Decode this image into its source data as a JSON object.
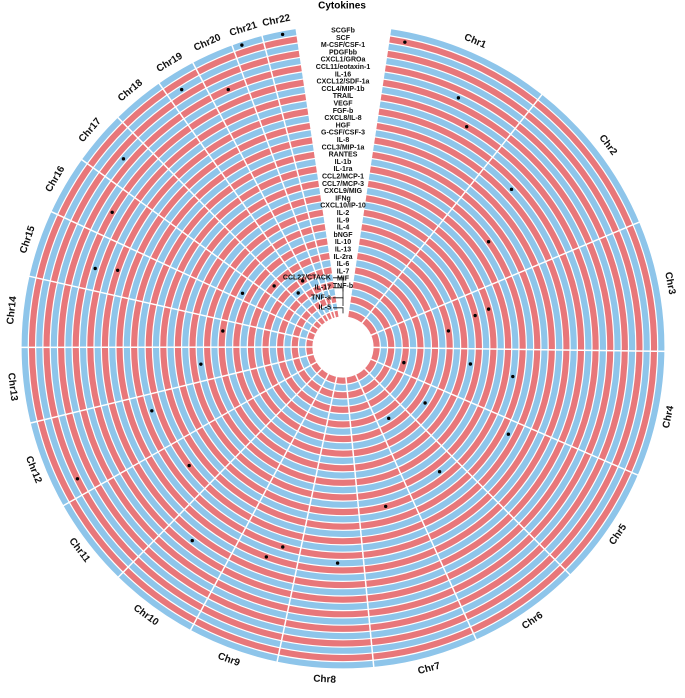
{
  "chart_data": {
    "type": "circos",
    "title": "Cytokines",
    "chromosomes": [
      "Chr1",
      "Chr2",
      "Chr3",
      "Chr4",
      "Chr5",
      "Chr6",
      "Chr7",
      "Chr8",
      "Chr9",
      "Chr10",
      "Chr11",
      "Chr12",
      "Chr13",
      "Chr14",
      "Chr15",
      "Chr16",
      "Chr17",
      "Chr18",
      "Chr19",
      "Chr20",
      "Chr21",
      "Chr22"
    ],
    "chromosome_sizes": [
      249,
      242,
      198,
      190,
      181,
      171,
      159,
      145,
      138,
      134,
      135,
      133,
      114,
      107,
      102,
      90,
      83,
      80,
      59,
      64,
      47,
      51
    ],
    "cytokines": [
      "SCGFb",
      "SCF",
      "M-CSF/CSF-1",
      "PDGFbb",
      "CXCL1/GROa",
      "CCL11/eotaxin-1",
      "IL-16",
      "CXCL12/SDF-1a",
      "CCL4/MIP-1b",
      "TRAIL",
      "VEGF",
      "FGF-b",
      "CXCL8/IL-8",
      "HGF",
      "G-CSF/CSF-3",
      "IL-8",
      "CCL3/MIP-1a",
      "RANTES",
      "IL-1b",
      "IL-1ra",
      "CCL2/MCP-1",
      "CCL7/MCP-3",
      "CXCL9/MIG",
      "IFNg",
      "CXCL10/IP-10",
      "IL-2",
      "IL-9",
      "IL-4",
      "bNGF",
      "IL-10",
      "IL-13",
      "IL-2ra",
      "IL-6",
      "IL-7",
      "MIF",
      "TNF-b",
      "CCL27/CTACK",
      "IL-17",
      "TNF-a",
      "IL-5"
    ],
    "ring_colors": [
      "#8ec5ea",
      "#e8777a"
    ],
    "dot_color": "#000000",
    "points": [
      {
        "chromosome": "Chr1",
        "cytokine": "SCF",
        "position": 0.1
      },
      {
        "chromosome": "Chr1",
        "cytokine": "IL-16",
        "position": 0.55
      },
      {
        "chromosome": "Chr1",
        "cytokine": "TRAIL",
        "position": 0.7
      },
      {
        "chromosome": "Chr2",
        "cytokine": "CXCL8/IL-8",
        "position": 0.3
      },
      {
        "chromosome": "Chr2",
        "cytokine": "IL-1ra",
        "position": 0.55
      },
      {
        "chromosome": "Chr3",
        "cytokine": "IFNg",
        "position": 0.35
      },
      {
        "chromosome": "Chr3",
        "cytokine": "IL-2",
        "position": 0.4
      },
      {
        "chromosome": "Chr3",
        "cytokine": "IL-10",
        "position": 0.6
      },
      {
        "chromosome": "Chr4",
        "cytokine": "CCL2/MCP-1",
        "position": 0.4
      },
      {
        "chromosome": "Chr4",
        "cytokine": "IL-9",
        "position": 0.3
      },
      {
        "chromosome": "Chr4",
        "cytokine": "TNF-b",
        "position": 0.6
      },
      {
        "chromosome": "Chr5",
        "cytokine": "IL-1b",
        "position": 0.2
      },
      {
        "chromosome": "Chr5",
        "cytokine": "IL-13",
        "position": 0.5
      },
      {
        "chromosome": "Chr6",
        "cytokine": "CXCL9/MIG",
        "position": 0.35
      },
      {
        "chromosome": "Chr6",
        "cytokine": "IL-6",
        "position": 0.6
      },
      {
        "chromosome": "Chr7",
        "cytokine": "CCL7/MCP-3",
        "position": 0.5
      },
      {
        "chromosome": "Chr8",
        "cytokine": "G-CSF/CSF-3",
        "position": 0.4
      },
      {
        "chromosome": "Chr9",
        "cytokine": "HGF",
        "position": 0.5
      },
      {
        "chromosome": "Chr9",
        "cytokine": "IL-8",
        "position": 0.3
      },
      {
        "chromosome": "Chr10",
        "cytokine": "VEGF",
        "position": 0.6
      },
      {
        "chromosome": "Chr11",
        "cytokine": "RANTES",
        "position": 0.5
      },
      {
        "chromosome": "Chr12",
        "cytokine": "PDGFbb",
        "position": 0.2
      },
      {
        "chromosome": "Chr12",
        "cytokine": "CCL3/MIP-1a",
        "position": 0.7
      },
      {
        "chromosome": "Chr13",
        "cytokine": "CXCL10/IP-10",
        "position": 0.5
      },
      {
        "chromosome": "Chr14",
        "cytokine": "IL-4",
        "position": 0.6
      },
      {
        "chromosome": "Chr15",
        "cytokine": "CCL4/MIP-1b",
        "position": 0.4
      },
      {
        "chromosome": "Chr15",
        "cytokine": "FGF-b",
        "position": 0.5
      },
      {
        "chromosome": "Chr16",
        "cytokine": "CXCL12/SDF-1a",
        "position": 0.5
      },
      {
        "chromosome": "Chr16",
        "cytokine": "bNGF",
        "position": 0.3
      },
      {
        "chromosome": "Chr17",
        "cytokine": "CXCL1/GROa",
        "position": 0.5
      },
      {
        "chromosome": "Chr17",
        "cytokine": "IL-2ra",
        "position": 0.6
      },
      {
        "chromosome": "Chr18",
        "cytokine": "MIF",
        "position": 0.5
      },
      {
        "chromosome": "Chr19",
        "cytokine": "M-CSF/CSF-1",
        "position": 0.4
      },
      {
        "chromosome": "Chr19",
        "cytokine": "IL-7",
        "position": 0.5
      },
      {
        "chromosome": "Chr20",
        "cytokine": "CCL11/eotaxin-1",
        "position": 0.5
      },
      {
        "chromosome": "Chr21",
        "cytokine": "SCGFb",
        "position": 0.3
      },
      {
        "chromosome": "Chr22",
        "cytokine": "SCGFb",
        "position": 0.6
      }
    ]
  }
}
